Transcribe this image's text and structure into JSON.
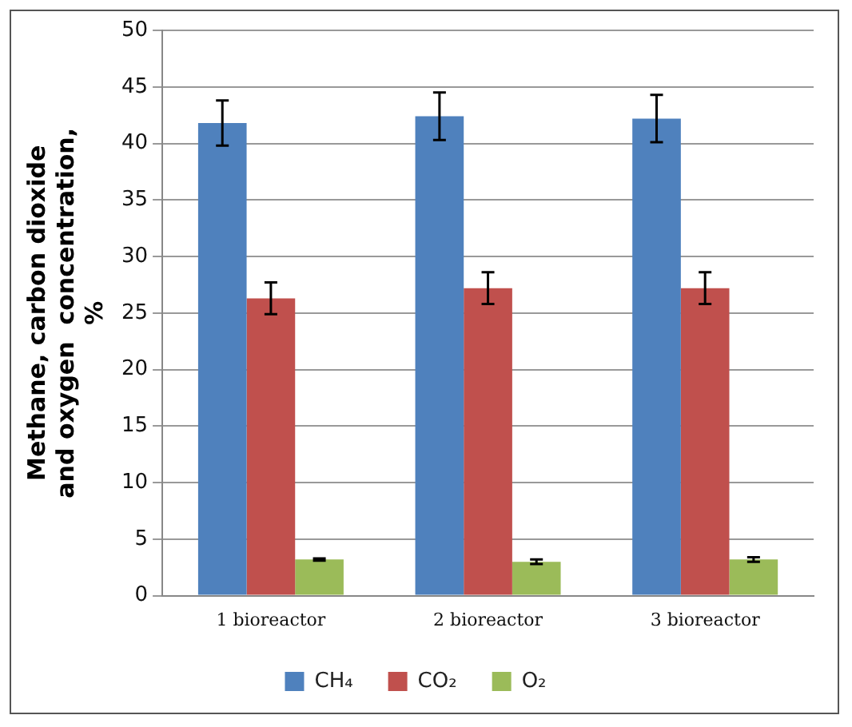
{
  "chart_data": {
    "type": "bar",
    "ylabel": "Methane, carbon dioxide and oxygen  concentration, %",
    "categories": [
      "1 bioreactor",
      "2 bioreactor",
      "3 bioreactor"
    ],
    "series": [
      {
        "name": "CH₄",
        "color": "#4f81bd",
        "values": [
          41.8,
          42.4,
          42.2
        ],
        "errors": [
          2.0,
          2.1,
          2.1
        ]
      },
      {
        "name": "CO₂",
        "color": "#c0504d",
        "values": [
          26.3,
          27.2,
          27.2
        ],
        "errors": [
          1.4,
          1.4,
          1.4
        ]
      },
      {
        "name": "O₂",
        "color": "#9bbb59",
        "values": [
          3.2,
          3.0,
          3.2
        ],
        "errors": [
          0.1,
          0.2,
          0.2
        ]
      }
    ],
    "ylim": [
      0,
      50
    ],
    "yticks": [
      0,
      5,
      10,
      15,
      20,
      25,
      30,
      35,
      40,
      45,
      50
    ],
    "grid": "y",
    "legend": "bottom"
  }
}
